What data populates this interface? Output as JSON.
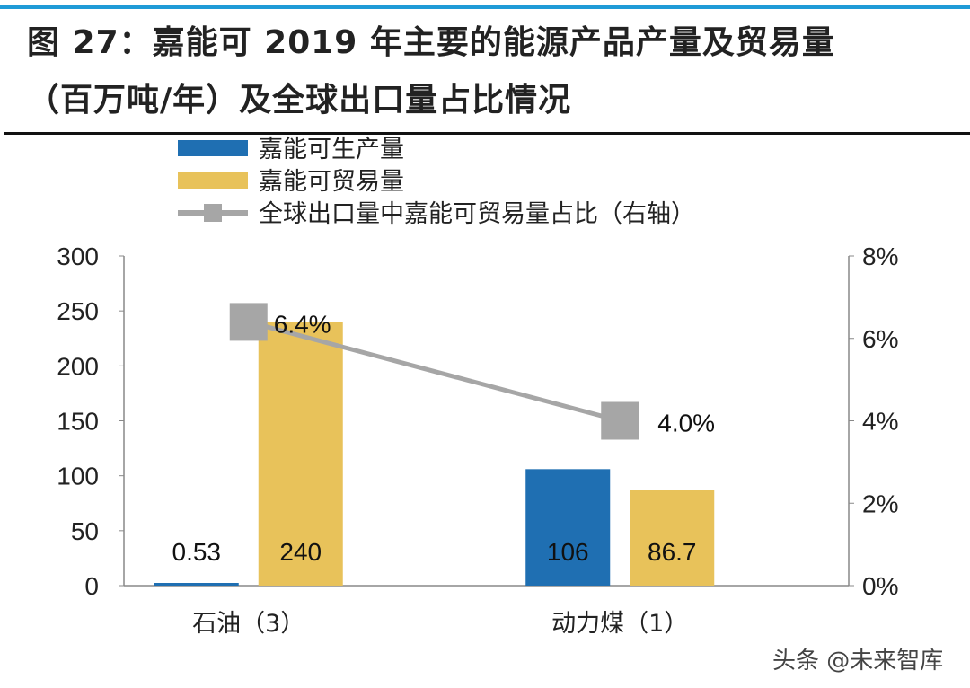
{
  "title_line1": "图 27：嘉能可 2019 年主要的能源产品产量及贸易量",
  "title_line2": "（百万吨/年）及全球出口量占比情况",
  "watermark": "头条 @未来智库",
  "chart_data": {
    "type": "bar",
    "categories": [
      "石油（3）",
      "动力煤（1）"
    ],
    "series": [
      {
        "name": "嘉能可生产量",
        "kind": "bar",
        "axis": "left",
        "color": "#1f6fb2",
        "values": [
          0.53,
          106
        ],
        "labels": [
          "0.53",
          "106"
        ]
      },
      {
        "name": "嘉能可贸易量",
        "kind": "bar",
        "axis": "left",
        "color": "#e8c25a",
        "values": [
          240,
          86.7
        ],
        "labels": [
          "240",
          "86.7"
        ]
      },
      {
        "name": "全球出口量中嘉能可贸易量占比（右轴）",
        "kind": "line",
        "axis": "right",
        "color": "#a6a6a6",
        "values": [
          6.4,
          4.0
        ],
        "labels": [
          "6.4%",
          "4.0%"
        ]
      }
    ],
    "ylim_left": [
      0,
      300
    ],
    "yticks_left": [
      "0",
      "50",
      "100",
      "150",
      "200",
      "250",
      "300"
    ],
    "ylim_right": [
      0,
      8
    ],
    "yticks_right": [
      "0%",
      "2%",
      "4%",
      "6%",
      "8%"
    ],
    "legend_position": "top-left",
    "grid": false
  }
}
